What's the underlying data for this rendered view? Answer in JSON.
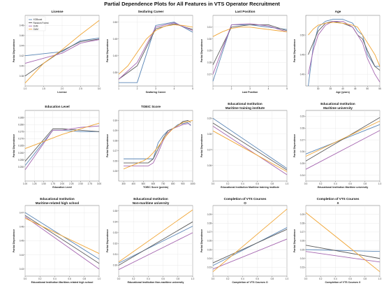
{
  "figure": {
    "suptitle": "Partial Dependence Plots for All Features in VTS Operator Recruitment"
  },
  "legend_labels": [
    "XGBoost",
    "Random Forest",
    "SVM",
    "GAM"
  ],
  "colors": {
    "XGBoost": "#5a86b6",
    "Random Forest": "#5b5b5b",
    "SVM": "#a566b0",
    "GAM": "#f0a535"
  },
  "chart_data": [
    {
      "type": "line",
      "title": "License",
      "xlabel": "License",
      "ylabel": "Partial Dependence",
      "xlim": [
        1.0,
        3.0
      ],
      "ylim": [
        0.36,
        0.5
      ],
      "xticks": [
        "1.0",
        "1.5",
        "2.0",
        "2.5",
        "3.0"
      ],
      "yticks": [
        "0.38",
        "0.40",
        "0.42",
        "0.44",
        "0.46",
        "0.48"
      ],
      "legend": "top-left",
      "series": [
        {
          "name": "XGBoost",
          "x": [
            1.0,
            2.0,
            2.5,
            3.0
          ],
          "y": [
            0.42,
            0.428,
            0.45,
            0.455
          ]
        },
        {
          "name": "Random Forest",
          "x": [
            1.0,
            2.0,
            2.5,
            3.0
          ],
          "y": [
            0.38,
            0.43,
            0.448,
            0.453
          ]
        },
        {
          "name": "SVM",
          "x": [
            1.0,
            2.0,
            2.5,
            3.0
          ],
          "y": [
            0.405,
            0.425,
            0.445,
            0.452
          ]
        },
        {
          "name": "GAM",
          "x": [
            1.0,
            1.5,
            2.0,
            2.5,
            3.0
          ],
          "y": [
            0.366,
            0.405,
            0.432,
            0.462,
            0.49
          ]
        }
      ]
    },
    {
      "type": "line",
      "title": "Seafaring Career",
      "xlabel": "Seafaring Career",
      "ylabel": "Partial Dependence",
      "xlim": [
        1,
        5
      ],
      "ylim": [
        0.31,
        0.52
      ],
      "xticks": [
        "1",
        "2",
        "3",
        "4",
        "5"
      ],
      "yticks": [
        "0.35",
        "0.40",
        "0.45",
        "0.50"
      ],
      "series": [
        {
          "name": "XGBoost",
          "x": [
            1,
            2,
            3,
            4,
            5
          ],
          "y": [
            0.32,
            0.32,
            0.49,
            0.5,
            0.47
          ]
        },
        {
          "name": "Random Forest",
          "x": [
            1,
            2,
            3,
            4,
            5
          ],
          "y": [
            0.33,
            0.37,
            0.48,
            0.495,
            0.478
          ]
        },
        {
          "name": "SVM",
          "x": [
            1,
            2,
            3,
            4,
            5
          ],
          "y": [
            0.33,
            0.38,
            0.485,
            0.498,
            0.475
          ]
        },
        {
          "name": "GAM",
          "x": [
            1,
            1.5,
            2,
            2.5,
            3,
            3.5,
            4,
            4.5,
            5
          ],
          "y": [
            0.345,
            0.37,
            0.41,
            0.45,
            0.475,
            0.488,
            0.492,
            0.49,
            0.485
          ]
        }
      ]
    },
    {
      "type": "line",
      "title": "Last Position",
      "xlabel": "Last Position",
      "ylabel": "Partial Dependence",
      "xlim": [
        1,
        5
      ],
      "ylim": [
        0.26,
        0.32
      ],
      "xticks": [
        "1",
        "2",
        "3",
        "4",
        "5"
      ],
      "yticks": [
        "0.27",
        "0.28",
        "0.29",
        "0.30",
        "0.31"
      ],
      "series": [
        {
          "name": "XGBoost",
          "x": [
            1,
            2,
            3,
            4,
            5
          ],
          "y": [
            0.264,
            0.312,
            0.312,
            0.31,
            0.308
          ]
        },
        {
          "name": "Random Forest",
          "x": [
            1,
            2,
            3,
            4,
            5
          ],
          "y": [
            0.278,
            0.31,
            0.312,
            0.312,
            0.307
          ]
        },
        {
          "name": "SVM",
          "x": [
            1,
            2,
            3,
            4,
            5
          ],
          "y": [
            0.27,
            0.312,
            0.313,
            0.311,
            0.306
          ]
        },
        {
          "name": "GAM",
          "x": [
            1,
            1.5,
            2,
            2.5,
            3,
            3.5,
            4,
            4.5,
            5
          ],
          "y": [
            0.302,
            0.306,
            0.309,
            0.31,
            0.31,
            0.309,
            0.308,
            0.307,
            0.306
          ]
        }
      ]
    },
    {
      "type": "line",
      "title": "Age",
      "xlabel": "Age (years)",
      "ylabel": "Partial Dependence",
      "xlim": [
        25,
        55
      ],
      "ylim": [
        0.37,
        0.55
      ],
      "xticks": [
        "30",
        "35",
        "40",
        "45",
        "50",
        "55"
      ],
      "yticks": [
        "0.40",
        "0.45",
        "0.50"
      ],
      "series": [
        {
          "name": "XGBoost",
          "x": [
            26,
            28,
            30,
            33,
            36,
            40,
            44,
            46,
            48,
            50,
            53,
            55
          ],
          "y": [
            0.37,
            0.47,
            0.52,
            0.535,
            0.54,
            0.54,
            0.53,
            0.51,
            0.5,
            0.45,
            0.42,
            0.42
          ]
        },
        {
          "name": "Random Forest",
          "x": [
            26,
            28,
            30,
            33,
            36,
            40,
            44,
            46,
            48,
            50,
            53,
            55
          ],
          "y": [
            0.45,
            0.48,
            0.51,
            0.53,
            0.535,
            0.53,
            0.52,
            0.5,
            0.49,
            0.46,
            0.42,
            0.41
          ]
        },
        {
          "name": "SVM",
          "x": [
            26,
            28,
            30,
            33,
            36,
            40,
            44,
            46,
            48,
            50,
            53,
            55
          ],
          "y": [
            0.4,
            0.46,
            0.5,
            0.525,
            0.535,
            0.535,
            0.52,
            0.5,
            0.48,
            0.44,
            0.4,
            0.38
          ]
        },
        {
          "name": "GAM",
          "x": [
            26,
            28,
            30,
            33,
            36,
            40,
            44,
            46,
            48,
            50,
            53,
            55
          ],
          "y": [
            0.5,
            0.515,
            0.525,
            0.53,
            0.532,
            0.53,
            0.525,
            0.52,
            0.5,
            0.48,
            0.45,
            0.42
          ]
        }
      ]
    },
    {
      "type": "line",
      "title": "Education Level",
      "xlabel": "Education Level",
      "ylabel": "Partial Dependence",
      "xlim": [
        1.0,
        3.0
      ],
      "ylim": [
        0.24,
        0.29
      ],
      "xticks": [
        "1.00",
        "1.25",
        "1.50",
        "1.75",
        "2.00",
        "2.25",
        "2.50",
        "2.75",
        "3.00"
      ],
      "yticks": [
        "0.250",
        "0.255",
        "0.260",
        "0.265",
        "0.270",
        "0.275",
        "0.280",
        "0.285"
      ],
      "series": [
        {
          "name": "XGBoost",
          "x": [
            1.0,
            1.75,
            2.0,
            2.5,
            3.0
          ],
          "y": [
            0.251,
            0.276,
            0.276,
            0.275,
            0.275
          ]
        },
        {
          "name": "Random Forest",
          "x": [
            1.0,
            1.75,
            2.0,
            2.5,
            3.0
          ],
          "y": [
            0.254,
            0.277,
            0.277,
            0.276,
            0.275
          ]
        },
        {
          "name": "SVM",
          "x": [
            1.0,
            1.75,
            2.0,
            2.5,
            3.0
          ],
          "y": [
            0.248,
            0.276,
            0.276,
            0.278,
            0.279
          ]
        },
        {
          "name": "GAM",
          "x": [
            1.0,
            1.5,
            2.0,
            2.5,
            3.0
          ],
          "y": [
            0.263,
            0.268,
            0.273,
            0.277,
            0.281
          ]
        }
      ]
    },
    {
      "type": "line",
      "title": "TOEIC Score",
      "xlabel": "TOEIC Score (points)",
      "ylabel": "Partial Dependence",
      "xlim": [
        250,
        1000
      ],
      "ylim": [
        0.24,
        0.31
      ],
      "xticks": [
        "300",
        "400",
        "500",
        "600",
        "700",
        "800",
        "900",
        "1000"
      ],
      "yticks": [
        "0.25",
        "0.26",
        "0.27",
        "0.28",
        "0.29",
        "0.30"
      ],
      "series": [
        {
          "name": "XGBoost",
          "x": [
            300,
            450,
            550,
            600,
            650,
            700,
            750,
            800,
            850,
            900,
            950,
            980
          ],
          "y": [
            0.262,
            0.262,
            0.262,
            0.262,
            0.278,
            0.285,
            0.29,
            0.292,
            0.296,
            0.297,
            0.298,
            0.295
          ]
        },
        {
          "name": "Random Forest",
          "x": [
            300,
            450,
            550,
            600,
            650,
            700,
            750,
            800,
            850,
            900,
            950,
            980
          ],
          "y": [
            0.258,
            0.258,
            0.258,
            0.262,
            0.272,
            0.282,
            0.29,
            0.292,
            0.295,
            0.299,
            0.3,
            0.298
          ]
        },
        {
          "name": "SVM",
          "x": [
            300,
            450,
            550,
            600,
            650,
            700,
            750,
            800,
            850,
            900,
            950,
            980
          ],
          "y": [
            0.255,
            0.255,
            0.255,
            0.258,
            0.268,
            0.28,
            0.288,
            0.292,
            0.294,
            0.296,
            0.297,
            0.296
          ]
        },
        {
          "name": "GAM",
          "x": [
            300,
            400,
            500,
            550,
            600,
            650,
            700,
            750,
            800,
            900,
            1000
          ],
          "y": [
            0.252,
            0.256,
            0.26,
            0.263,
            0.268,
            0.274,
            0.281,
            0.287,
            0.292,
            0.298,
            0.3
          ]
        }
      ]
    },
    {
      "type": "line",
      "title": "Educational Institution\nMaritime training institute",
      "xlabel": "Educational Institution Maritime training institute",
      "ylabel": "Partial Dependence",
      "xlim": [
        0.0,
        1.0
      ],
      "ylim": [
        0.25,
        0.295
      ],
      "xticks": [
        "0.0",
        "0.2",
        "0.4",
        "0.6",
        "0.8",
        "1.0"
      ],
      "yticks": [
        "0.26",
        "0.27",
        "0.28",
        "0.29"
      ],
      "series": [
        {
          "name": "XGBoost",
          "x": [
            0,
            1
          ],
          "y": [
            0.29,
            0.258
          ]
        },
        {
          "name": "Random Forest",
          "x": [
            0,
            1
          ],
          "y": [
            0.287,
            0.257
          ]
        },
        {
          "name": "SVM",
          "x": [
            0,
            1
          ],
          "y": [
            0.285,
            0.254
          ]
        },
        {
          "name": "GAM",
          "x": [
            0,
            1
          ],
          "y": [
            0.282,
            0.256
          ]
        }
      ]
    },
    {
      "type": "line",
      "title": "Educational Institution\nMaritime university",
      "xlabel": "Educational Institution Maritime university",
      "ylabel": "Partial Dependence",
      "xlim": [
        0.0,
        1.0
      ],
      "ylim": [
        0.235,
        0.295
      ],
      "xticks": [
        "0.0",
        "0.2",
        "0.4",
        "0.6",
        "0.8",
        "1.0"
      ],
      "yticks": [
        "0.24",
        "0.25",
        "0.26",
        "0.27",
        "0.28",
        "0.29"
      ],
      "series": [
        {
          "name": "XGBoost",
          "x": [
            0,
            1
          ],
          "y": [
            0.258,
            0.283
          ]
        },
        {
          "name": "Random Forest",
          "x": [
            0,
            1
          ],
          "y": [
            0.252,
            0.289
          ]
        },
        {
          "name": "SVM",
          "x": [
            0,
            1
          ],
          "y": [
            0.245,
            0.278
          ]
        },
        {
          "name": "GAM",
          "x": [
            0,
            1
          ],
          "y": [
            0.256,
            0.286
          ]
        }
      ]
    },
    {
      "type": "line",
      "title": "Educational Institution\nMaritime-related high school",
      "xlabel": "Educational Institution Maritime-related high school",
      "ylabel": "Partial Dependence",
      "xlim": [
        0.0,
        1.0
      ],
      "ylim": [
        0.425,
        0.475
      ],
      "xticks": [
        "0.0",
        "0.2",
        "0.4",
        "0.6",
        "0.8",
        "1.0"
      ],
      "yticks": [
        "0.43",
        "0.44",
        "0.45",
        "0.46",
        "0.47"
      ],
      "series": [
        {
          "name": "XGBoost",
          "x": [
            0,
            1
          ],
          "y": [
            0.47,
            0.437
          ]
        },
        {
          "name": "Random Forest",
          "x": [
            0,
            1
          ],
          "y": [
            0.468,
            0.434
          ]
        },
        {
          "name": "SVM",
          "x": [
            0,
            1
          ],
          "y": [
            0.467,
            0.43
          ]
        },
        {
          "name": "GAM",
          "x": [
            0,
            1
          ],
          "y": [
            0.466,
            0.441
          ]
        }
      ]
    },
    {
      "type": "line",
      "title": "Educational Institution\nNon-maritime university",
      "xlabel": "Educational Institution Non-maritime university",
      "ylabel": "Partial Dependence",
      "xlim": [
        0.0,
        1.0
      ],
      "ylim": [
        0.29,
        0.355
      ],
      "xticks": [
        "0.0",
        "0.2",
        "0.4",
        "0.6",
        "0.8",
        "1.0"
      ],
      "yticks": [
        "0.30",
        "0.31",
        "0.32",
        "0.33",
        "0.34",
        "0.35"
      ],
      "series": [
        {
          "name": "XGBoost",
          "x": [
            0,
            1
          ],
          "y": [
            0.302,
            0.336
          ]
        },
        {
          "name": "Random Forest",
          "x": [
            0,
            1
          ],
          "y": [
            0.3,
            0.34
          ]
        },
        {
          "name": "SVM",
          "x": [
            0,
            1
          ],
          "y": [
            0.296,
            0.33
          ]
        },
        {
          "name": "GAM",
          "x": [
            0,
            1
          ],
          "y": [
            0.303,
            0.351
          ]
        }
      ]
    },
    {
      "type": "line",
      "title": "Completion of VTS Courses\nO",
      "xlabel": "Completion of VTS Courses O",
      "ylabel": "Partial Dependence",
      "xlim": [
        0.0,
        1.0
      ],
      "ylim": [
        0.22,
        0.3
      ],
      "xticks": [
        "0.0",
        "0.2",
        "0.4",
        "0.6",
        "0.8",
        "1.0"
      ],
      "yticks": [
        "0.23",
        "0.24",
        "0.25",
        "0.26",
        "0.27",
        "0.28",
        "0.29"
      ],
      "series": [
        {
          "name": "XGBoost",
          "x": [
            0,
            1
          ],
          "y": [
            0.232,
            0.275
          ]
        },
        {
          "name": "Random Forest",
          "x": [
            0,
            1
          ],
          "y": [
            0.235,
            0.273
          ]
        },
        {
          "name": "SVM",
          "x": [
            0,
            1
          ],
          "y": [
            0.228,
            0.262
          ]
        },
        {
          "name": "GAM",
          "x": [
            0,
            1
          ],
          "y": [
            0.225,
            0.296
          ]
        }
      ]
    },
    {
      "type": "line",
      "title": "Completion of VTS Courses\nX",
      "xlabel": "Completion of VTS Courses X",
      "ylabel": "Partial Dependence",
      "xlim": [
        0.0,
        1.0
      ],
      "ylim": [
        0.22,
        0.3
      ],
      "xticks": [
        "0.0",
        "0.2",
        "0.4",
        "0.6",
        "0.8",
        "1.0"
      ],
      "yticks": [
        "0.23",
        "0.24",
        "0.25",
        "0.26",
        "0.27",
        "0.28",
        "0.29"
      ],
      "series": [
        {
          "name": "XGBoost",
          "x": [
            0,
            1
          ],
          "y": [
            0.25,
            0.248
          ]
        },
        {
          "name": "Random Forest",
          "x": [
            0,
            1
          ],
          "y": [
            0.255,
            0.24
          ]
        },
        {
          "name": "SVM",
          "x": [
            0,
            1
          ],
          "y": [
            0.248,
            0.236
          ]
        },
        {
          "name": "GAM",
          "x": [
            0,
            1
          ],
          "y": [
            0.292,
            0.225
          ]
        }
      ]
    }
  ]
}
